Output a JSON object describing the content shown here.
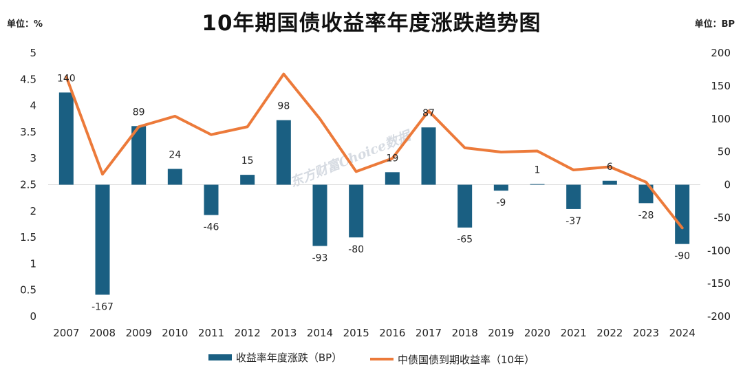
{
  "header": {
    "title": "10年期国债收益率年度涨跌趋势图",
    "unit_left": "单位：%",
    "unit_right": "单位：BP"
  },
  "watermark": "东方财富Choice数据",
  "colors": {
    "bar": "#1a5f82",
    "line": "#ec7a3a",
    "axis": "#d9d9d9"
  },
  "chart_data": {
    "type": "bar",
    "categories": [
      "2007",
      "2008",
      "2009",
      "2010",
      "2011",
      "2012",
      "2013",
      "2014",
      "2015",
      "2016",
      "2017",
      "2018",
      "2019",
      "2020",
      "2021",
      "2022",
      "2023",
      "2024"
    ],
    "series": [
      {
        "name": "收益率年度涨跌（BP）",
        "type": "bar",
        "axis": "right",
        "values": [
          140,
          -167,
          89,
          24,
          -46,
          15,
          98,
          -93,
          -80,
          19,
          87,
          -65,
          -9,
          1,
          -37,
          6,
          -28,
          -90
        ],
        "labels": [
          "140",
          "-167",
          "89",
          "24",
          "-46",
          "15",
          "98",
          "-93",
          "-80",
          "19",
          "87",
          "-65",
          "-9",
          "1",
          "-37",
          "6",
          "-28",
          "-90"
        ]
      },
      {
        "name": "中债国债到期收益率（10年）",
        "type": "line",
        "axis": "left",
        "values": [
          4.55,
          2.7,
          3.6,
          3.8,
          3.45,
          3.6,
          4.6,
          3.75,
          2.75,
          3.0,
          3.9,
          3.2,
          3.12,
          3.14,
          2.78,
          2.84,
          2.55,
          1.68
        ]
      }
    ],
    "y_left": {
      "min": 0,
      "max": 5,
      "ticks": [
        "0",
        "0.5",
        "1",
        "1.5",
        "2",
        "2.5",
        "3",
        "3.5",
        "4",
        "4.5",
        "5"
      ]
    },
    "y_right": {
      "min": -200,
      "max": 200,
      "ticks": [
        "-200",
        "-150",
        "-100",
        "-50",
        "0",
        "50",
        "100",
        "150",
        "200"
      ]
    },
    "grid": false,
    "legend_position": "bottom"
  }
}
